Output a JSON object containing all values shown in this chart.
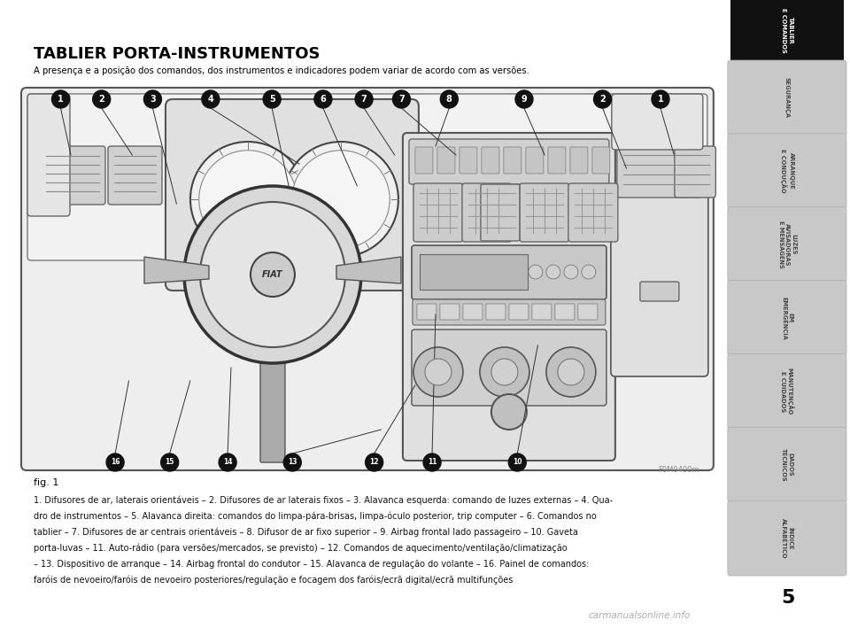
{
  "title": "TABLIER PORTA-INSTRUMENTOS",
  "subtitle": "A presença e a posição dos comandos, dos instrumentos e indicadores podem variar de acordo com as versões.",
  "fig_label": "fig. 1",
  "watermark": "F0M0400m",
  "page_number": "5",
  "sidebar_tabs": [
    {
      "label": "TABLIER\nE COMANDOS",
      "active": true
    },
    {
      "label": "SEGURANÇA",
      "active": false
    },
    {
      "label": "ARRANQUE\nE CONDUÇÃO",
      "active": false
    },
    {
      "label": "LUZES\nAVISADORAS\nE MENSAGENS",
      "active": false
    },
    {
      "label": "EM\nEMERGÊNCIA",
      "active": false
    },
    {
      "label": "MANUTENÇÃO\nE CUIDADOS",
      "active": false
    },
    {
      "label": "DADOS\nTÉCNICOS",
      "active": false
    },
    {
      "label": "ÍNDICE\nALFABÉTICO",
      "active": false
    }
  ],
  "top_callouts": [
    [
      0.05,
      "1"
    ],
    [
      0.11,
      "2"
    ],
    [
      0.185,
      "3"
    ],
    [
      0.27,
      "4"
    ],
    [
      0.36,
      "5"
    ],
    [
      0.435,
      "6"
    ],
    [
      0.495,
      "7"
    ],
    [
      0.55,
      "7"
    ],
    [
      0.62,
      "8"
    ],
    [
      0.73,
      "9"
    ],
    [
      0.845,
      "2"
    ],
    [
      0.93,
      "1"
    ]
  ],
  "bottom_callouts": [
    [
      0.13,
      "16"
    ],
    [
      0.21,
      "15"
    ],
    [
      0.295,
      "14"
    ],
    [
      0.39,
      "13"
    ],
    [
      0.51,
      "12"
    ],
    [
      0.595,
      "11"
    ],
    [
      0.72,
      "10"
    ]
  ],
  "description_lines": [
    "1. Difusores de ar, laterais orientáveis – 2. Difusores de ar laterais fixos – 3. Alavanca esquerda: comando de luzes externas – 4. Qua-",
    "dro de instrumentos – 5. Alavanca direita: comandos do limpa-pára-brisas, limpa-óculo posterior, trip computer – 6. Comandos no",
    "tablier – 7. Difusores de ar centrais orientáveis – 8. Difusor de ar fixo superior – 9. Airbag frontal lado passageiro – 10. Gaveta",
    "porta-luvas – 11. Auto-rádio (para versões/mercados, se previsto) – 12. Comandos de aquecimento/ventilação/climatização",
    "– 13. Dispositivo de arranque – 14. Airbag frontal do condutor – 15. Alavanca de regulação do volante – 16. Painel de comandos:",
    "faróis de nevoeiro/faróis de nevoeiro posteriores/regulação e focagem dos faróis/ecrã digital/ecrã multifunções"
  ],
  "bold_numbers": [
    "1.",
    "2.",
    "3.",
    "4.",
    "5.",
    "6.",
    "7.",
    "8.",
    "9.",
    "10.",
    "11.",
    "12.",
    "13.",
    "14.",
    "15.",
    "16."
  ],
  "bg_color": "#ffffff",
  "sidebar_active_color": "#111111",
  "sidebar_inactive_color": "#c8c8c8",
  "sidebar_inactive_text": "#444444",
  "callout_color": "#111111",
  "callout_text_color": "#ffffff",
  "line_color": "#333333",
  "dash_color": "#d8d8d8",
  "dash_edge_color": "#555555"
}
